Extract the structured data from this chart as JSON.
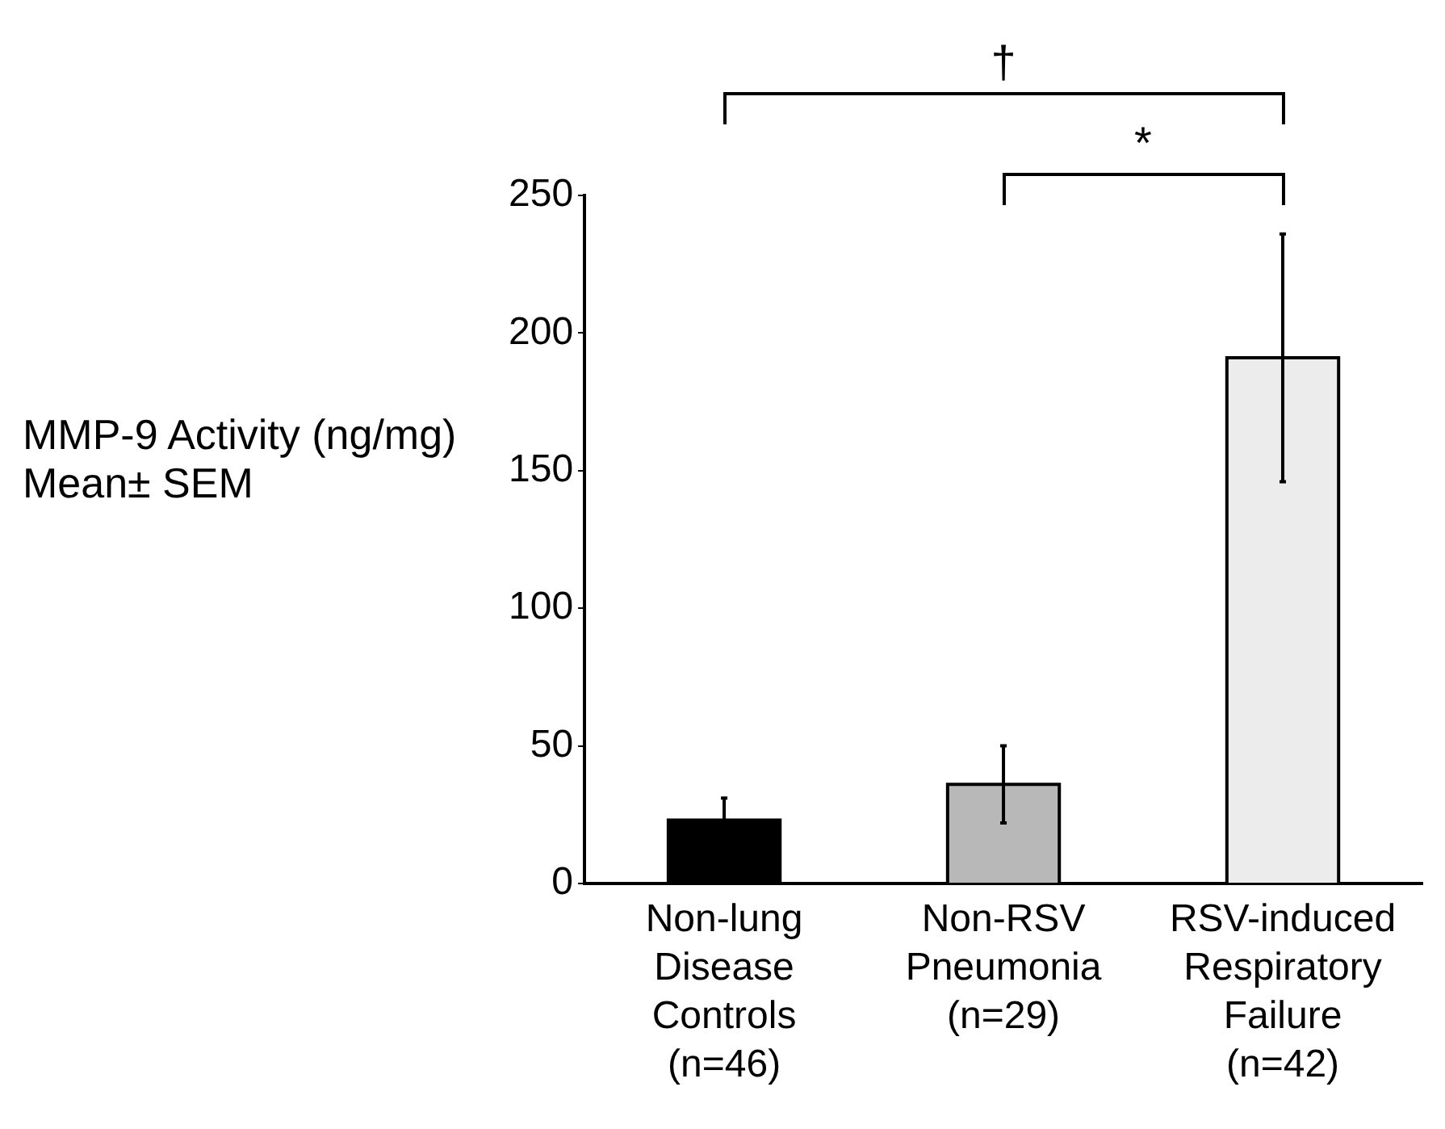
{
  "chart_data": {
    "type": "bar",
    "ylabel": "MMP-9 Activity (ng/mg)\nMean± SEM",
    "categories": [
      "Non-lung\nDisease\nControls\n(n=46)",
      "Non-RSV\nPneumonia\n(n=29)",
      "RSV-induced\nRespiratory\nFailure\n(n=42)"
    ],
    "values": [
      23,
      36,
      191
    ],
    "colors": [
      "#000000",
      "#b8b8b8",
      "#ececec"
    ],
    "errors": [
      8,
      14,
      45
    ],
    "ylim": [
      0,
      250
    ],
    "yticks": [
      0,
      50,
      100,
      150,
      200,
      250
    ],
    "grid": false,
    "legend": false,
    "annotations": [
      "†",
      "*"
    ]
  }
}
